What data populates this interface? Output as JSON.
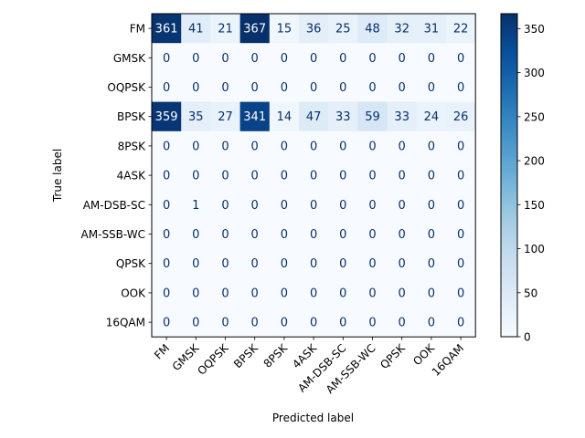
{
  "chart_data": {
    "type": "heatmap",
    "title": "",
    "xlabel": "Predicted label",
    "ylabel": "True label",
    "x_categories": [
      "FM",
      "GMSK",
      "OQPSK",
      "BPSK",
      "8PSK",
      "4ASK",
      "AM-DSB-SC",
      "AM-SSB-WC",
      "QPSK",
      "OOK",
      "16QAM"
    ],
    "y_categories": [
      "FM",
      "GMSK",
      "OQPSK",
      "BPSK",
      "8PSK",
      "4ASK",
      "AM-DSB-SC",
      "AM-SSB-WC",
      "QPSK",
      "OOK",
      "16QAM"
    ],
    "values": [
      [
        361,
        41,
        21,
        367,
        15,
        36,
        25,
        48,
        32,
        31,
        22
      ],
      [
        0,
        0,
        0,
        0,
        0,
        0,
        0,
        0,
        0,
        0,
        0
      ],
      [
        0,
        0,
        0,
        0,
        0,
        0,
        0,
        0,
        0,
        0,
        0
      ],
      [
        359,
        35,
        27,
        341,
        14,
        47,
        33,
        59,
        33,
        24,
        26
      ],
      [
        0,
        0,
        0,
        0,
        0,
        0,
        0,
        0,
        0,
        0,
        0
      ],
      [
        0,
        0,
        0,
        0,
        0,
        0,
        0,
        0,
        0,
        0,
        0
      ],
      [
        0,
        1,
        0,
        0,
        0,
        0,
        0,
        0,
        0,
        0,
        0
      ],
      [
        0,
        0,
        0,
        0,
        0,
        0,
        0,
        0,
        0,
        0,
        0
      ],
      [
        0,
        0,
        0,
        0,
        0,
        0,
        0,
        0,
        0,
        0,
        0
      ],
      [
        0,
        0,
        0,
        0,
        0,
        0,
        0,
        0,
        0,
        0,
        0
      ],
      [
        0,
        0,
        0,
        0,
        0,
        0,
        0,
        0,
        0,
        0,
        0
      ]
    ],
    "colormap": "Blues",
    "colorbar": {
      "range": [
        0,
        367
      ],
      "ticks": [
        0,
        50,
        100,
        150,
        200,
        250,
        300,
        350
      ]
    },
    "grid": false
  }
}
